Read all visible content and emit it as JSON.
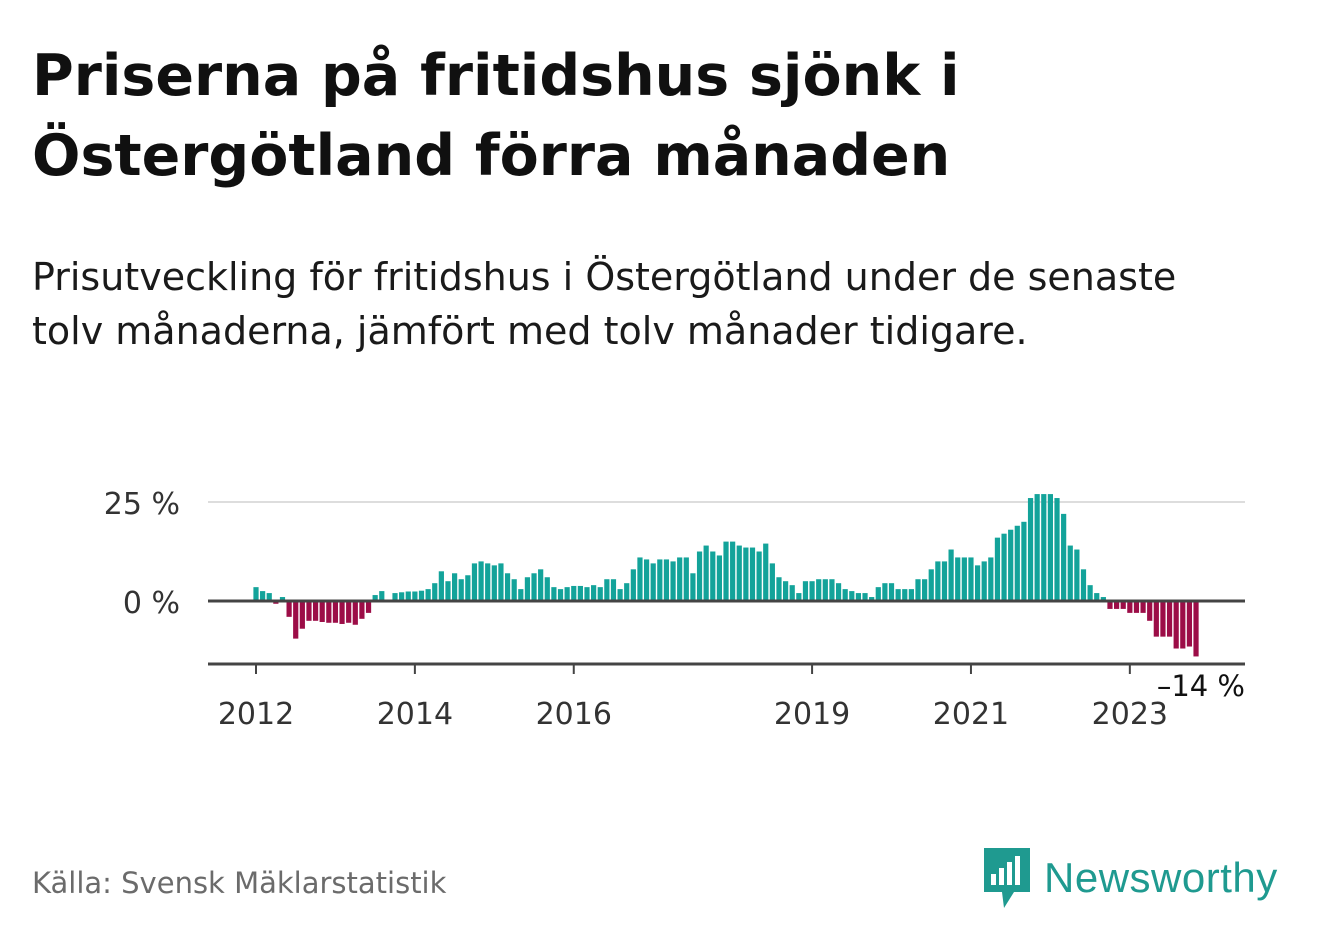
{
  "title": "Priserna på fritidshus sjönk i Östergötland förra månaden",
  "subtitle": "Prisutveckling för fritidshus i Östergötland under de senaste tolv månaderna, jämfört med tolv månader tidigare.",
  "source": "Källa: Svensk Mäklarstatistik",
  "brand": {
    "name": "Newsworthy",
    "icon": "newsworthy-logo-icon"
  },
  "colors": {
    "positive": "#13a39a",
    "negative": "#9c0d47",
    "grid": "#dddddd",
    "axis": "#444444"
  },
  "chart_data": {
    "type": "bar",
    "title": "Priserna på fritidshus sjönk i Östergötland förra månaden",
    "xlabel": "",
    "ylabel": "",
    "unit": "%",
    "ylim": [
      -14,
      28
    ],
    "grid": true,
    "x_start": "2012-01",
    "y_ticks": [
      {
        "value": 25,
        "label": "25 %"
      },
      {
        "value": 0,
        "label": "0 %"
      }
    ],
    "x_ticks": [
      {
        "value": "2012-01",
        "label": "2012"
      },
      {
        "value": "2014-01",
        "label": "2014"
      },
      {
        "value": "2016-01",
        "label": "2016"
      },
      {
        "value": "2019-01",
        "label": "2019"
      },
      {
        "value": "2021-01",
        "label": "2021"
      },
      {
        "value": "2023-01",
        "label": "2023"
      }
    ],
    "annotation": {
      "label": "–14 %",
      "value": -14
    },
    "values": [
      3.5,
      2.5,
      2,
      -0.7,
      1,
      -4,
      -9.5,
      -7,
      -5,
      -5,
      -5.3,
      -5.5,
      -5.5,
      -5.8,
      -5.5,
      -6,
      -4.5,
      -3,
      1.5,
      2.5,
      0,
      2,
      2.2,
      2.4,
      2.4,
      2.6,
      3,
      4.5,
      7.5,
      5,
      7,
      5.5,
      6.5,
      9.5,
      10,
      9.5,
      9,
      9.5,
      7,
      5.5,
      3,
      6,
      7,
      8,
      6,
      3.5,
      3,
      3.5,
      3.8,
      3.8,
      3.5,
      4,
      3.5,
      5.5,
      5.5,
      3,
      4.5,
      8,
      11,
      10.5,
      9.5,
      10.5,
      10.5,
      10,
      11,
      11,
      7,
      12.5,
      14,
      12.5,
      11.5,
      15,
      15,
      14,
      13.5,
      13.5,
      12.5,
      14.5,
      9.5,
      6,
      5,
      4,
      2,
      5,
      5,
      5.5,
      5.5,
      5.5,
      4.5,
      3,
      2.5,
      2,
      2,
      1,
      3.5,
      4.5,
      4.5,
      3,
      3,
      3,
      5.5,
      5.5,
      8,
      10,
      10,
      13,
      11,
      11,
      11,
      9,
      10,
      11,
      16,
      17,
      18,
      19,
      20,
      26,
      27,
      27,
      27,
      26,
      22,
      14,
      13,
      8,
      4,
      2,
      1,
      -2,
      -2,
      -2,
      -3,
      -3,
      -3,
      -5,
      -9,
      -9,
      -9,
      -12,
      -12,
      -11.5,
      -14
    ]
  }
}
